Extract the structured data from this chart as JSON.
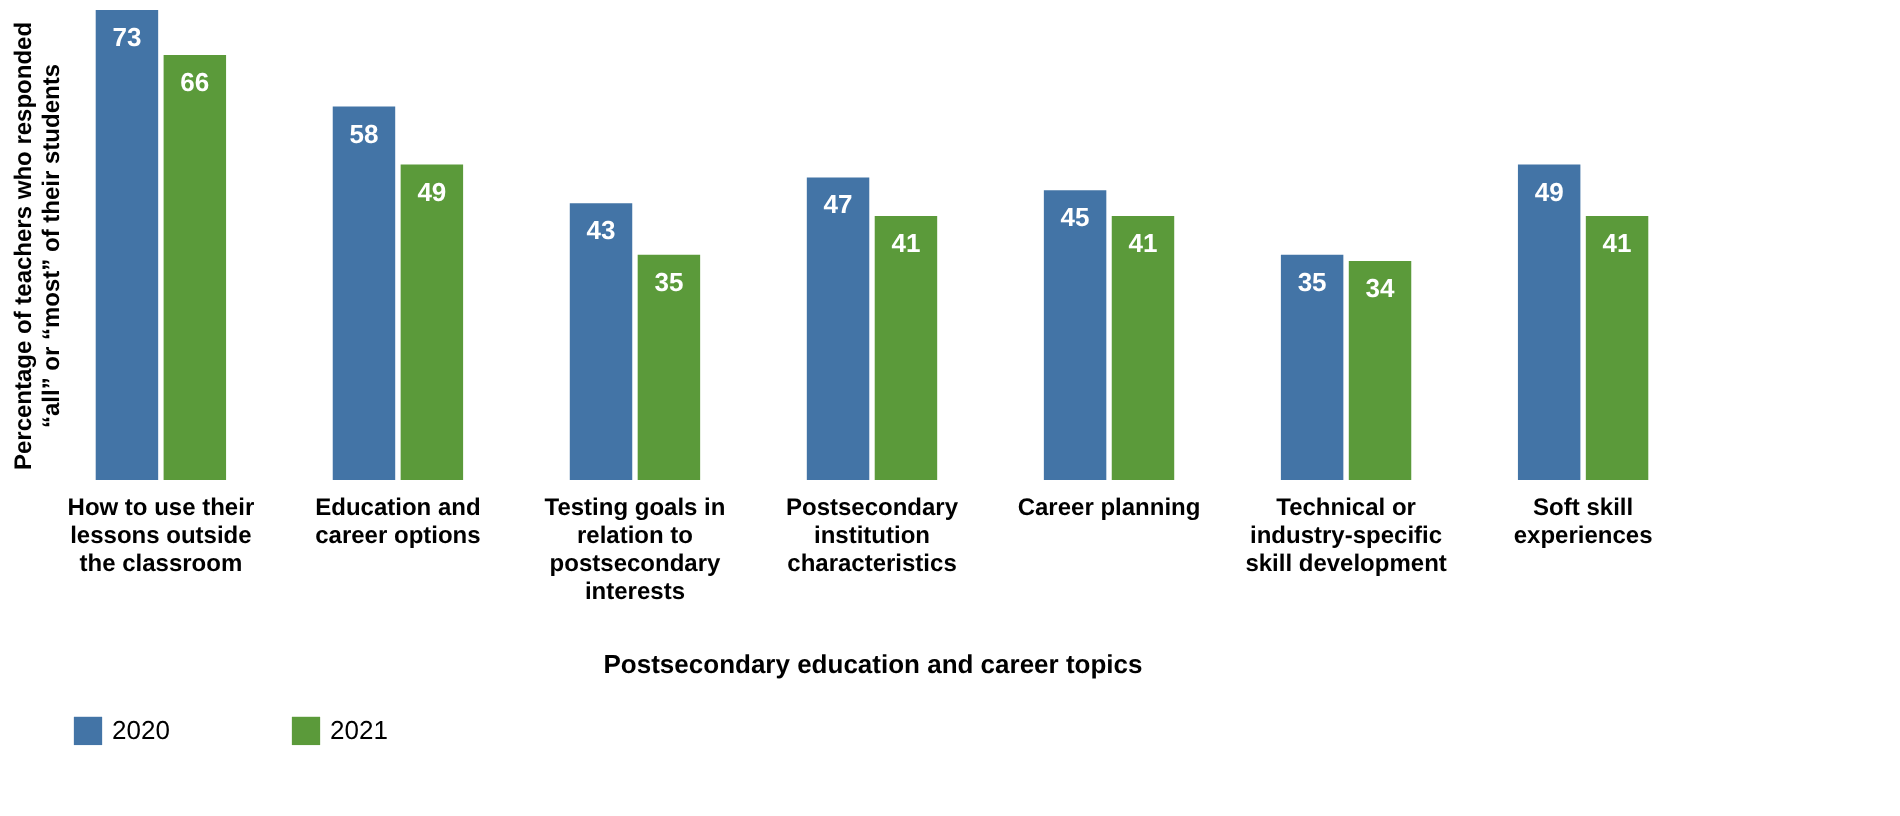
{
  "chart_data": {
    "type": "bar",
    "xlabel": "Postsecondary education and career topics",
    "ylabel": "Percentage of teachers who responded “all” or “most” of their students",
    "categories": [
      "How to use their lessons outside the classroom",
      "Education and career options",
      "Testing goals in relation to postsecondary interests",
      "Postsecondary institution characteristics",
      "Career planning",
      "Technical or industry-specific skill development",
      "Soft skill experiences"
    ],
    "series": [
      {
        "name": "2020",
        "color": "#4374a6",
        "values": [
          73,
          58,
          43,
          47,
          45,
          35,
          49
        ]
      },
      {
        "name": "2021",
        "color": "#5b9a3a",
        "values": [
          66,
          49,
          35,
          41,
          41,
          34,
          41
        ]
      }
    ],
    "data_labels": true,
    "legend": "bottom",
    "grid": false,
    "tick_labels": "x"
  }
}
